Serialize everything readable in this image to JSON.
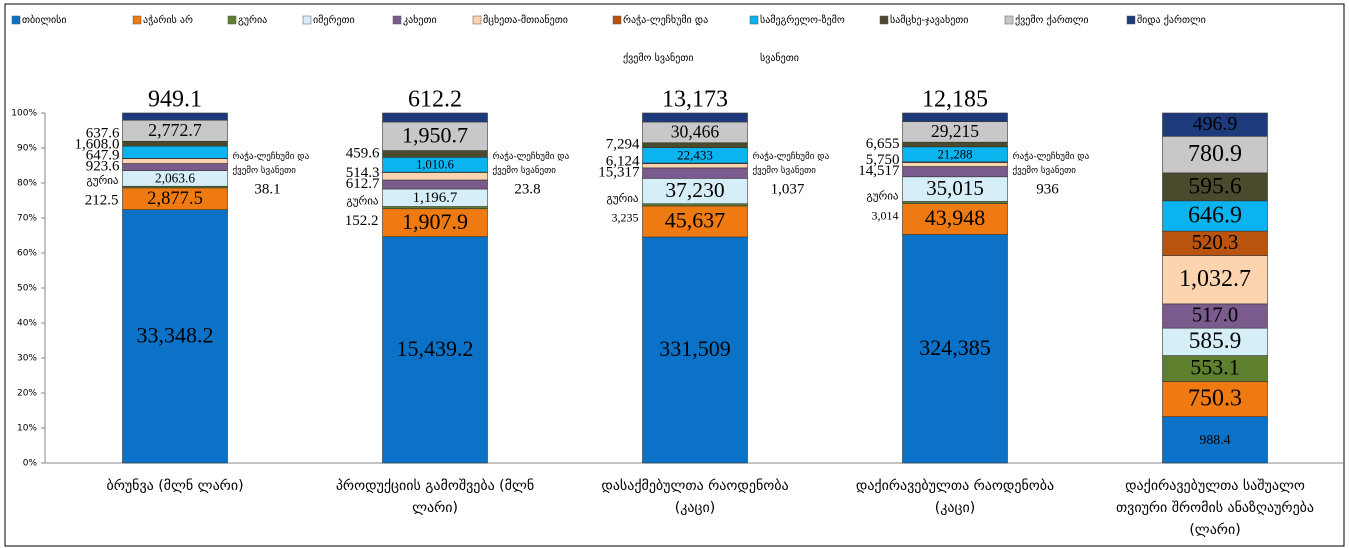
{
  "chart_data": {
    "type": "bar",
    "categories": [
      "ბრუნვა (მლნ ლარი)",
      "პროდუქციის გამოშვება (მლნ ლარი)",
      "დასაქმებულთა რაოდენობა (კაცი)",
      "დაქირავებულთა რაოდენობა (კაცი)",
      "დაქირავებულთა საშუალო თვიური შრომის ანაზღაურება (ლარი)"
    ],
    "ylim": [
      0,
      100
    ],
    "yticks": [
      {
        "value": 0,
        "label": "0%"
      },
      {
        "value": 10,
        "label": "10%"
      },
      {
        "value": 20,
        "label": "20%"
      },
      {
        "value": 30,
        "label": "30%"
      },
      {
        "value": 40,
        "label": "40%"
      },
      {
        "value": 50,
        "label": "50%"
      },
      {
        "value": 60,
        "label": "60%"
      },
      {
        "value": 70,
        "label": "70%"
      },
      {
        "value": 80,
        "label": "80%"
      },
      {
        "value": 90,
        "label": "90%"
      },
      {
        "value": 100,
        "label": "100%"
      }
    ],
    "stacked_percent": true,
    "legend": "top",
    "series": [
      {
        "name": "თბილისი",
        "color": "#0b72c8",
        "values": [
          33348.2,
          15439.2,
          331509,
          324385,
          988.4
        ],
        "value_labels": [
          "33,348.2",
          "15,439.2",
          "331,509",
          "324,385",
          "988.4"
        ]
      },
      {
        "name": "აჭარის არ",
        "color": "#f07a12",
        "values": [
          2877.5,
          1907.9,
          45637,
          43948,
          750.3
        ],
        "value_labels": [
          "2,877.5",
          "1,907.9",
          "45,637",
          "43,948",
          "750.3"
        ]
      },
      {
        "name": "გურია",
        "color": "#5e7f2e",
        "values": [
          212.5,
          152.2,
          3235,
          3014,
          553.1
        ],
        "value_labels": [
          "212.5",
          "152.2",
          "3,235",
          "3,014",
          "553.1"
        ]
      },
      {
        "name": "იმერეთი",
        "color": "#d6eef7",
        "values": [
          2063.6,
          1196.7,
          37230,
          35015,
          585.9
        ],
        "value_labels": [
          "2,063.6",
          "1,196.7",
          "37,230",
          "35,015",
          "585.9"
        ]
      },
      {
        "name": "კახეთი",
        "color": "#7b5b8e",
        "values": [
          923.6,
          612.7,
          15317,
          14517,
          517.0
        ],
        "value_labels": [
          "923.6",
          "612.7",
          "15,317",
          "14,517",
          "517.0"
        ]
      },
      {
        "name": "მცხეთა-მთიანეთი",
        "color": "#fcd4b0",
        "values": [
          647.9,
          514.3,
          6124,
          5750,
          1032.7
        ],
        "value_labels": [
          "647.9",
          "514.3",
          "6,124",
          "5,750",
          "1,032.7"
        ]
      },
      {
        "name": "რაჭა-ლეჩხუმი და ქვემო სვანეთი",
        "color": "#b9530d",
        "values": [
          38.1,
          23.8,
          1037,
          936,
          520.3
        ],
        "value_labels": [
          "38.1",
          "23.8",
          "1,037",
          "936",
          "520.3"
        ]
      },
      {
        "name": "სამეგრელო-ზემო სვანეთი",
        "color": "#0bb4ef",
        "values": [
          1608.0,
          1010.6,
          22433,
          21288,
          646.9
        ],
        "value_labels": [
          "1,608.0",
          "1,010.6",
          "22,433",
          "21,288",
          "646.9"
        ]
      },
      {
        "name": "სამცხე-ჯავახეთი",
        "color": "#4b4a2c",
        "values": [
          637.6,
          459.6,
          7294,
          6655,
          595.6
        ],
        "value_labels": [
          "637.6",
          "459.6",
          "7,294",
          "6,655",
          "595.6"
        ]
      },
      {
        "name": "ქვემო ქართლი",
        "color": "#c8c8c8",
        "values": [
          2772.7,
          1950.7,
          30466,
          29215,
          780.9
        ],
        "value_labels": [
          "2,772.7",
          "1,950.7",
          "30,466",
          "29,215",
          "780.9"
        ]
      },
      {
        "name": "შიდა ქართლი",
        "color": "#1d3a7c",
        "values": [
          949.1,
          612.2,
          13173,
          12185,
          496.9
        ],
        "value_labels": [
          "949.1",
          "612.2",
          "13,173",
          "12,185",
          "496.9"
        ]
      }
    ]
  }
}
